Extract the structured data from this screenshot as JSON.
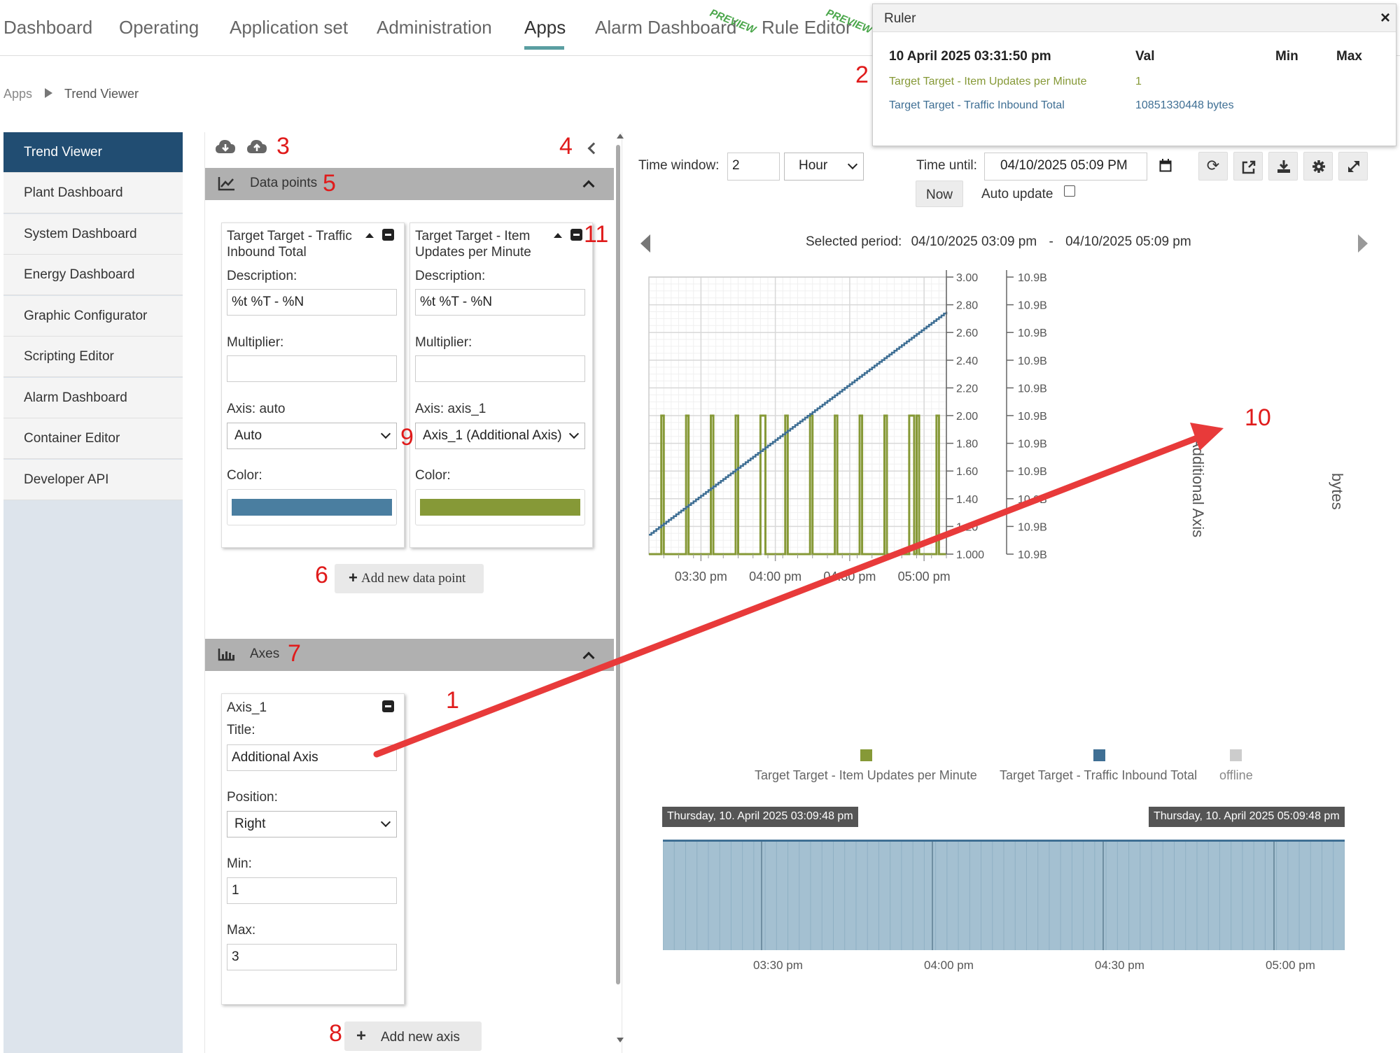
{
  "nav": {
    "items": [
      "Dashboard",
      "Operating",
      "Application set",
      "Administration",
      "Apps",
      "Alarm Dashboard",
      "Rule Editor"
    ],
    "active": "Apps",
    "preview_badge": "PREVIEW"
  },
  "breadcrumb": {
    "root": "Apps",
    "current": "Trend Viewer"
  },
  "sidebar": {
    "items": [
      {
        "label": "Trend Viewer"
      },
      {
        "label": "Plant Dashboard"
      },
      {
        "label": "System Dashboard"
      },
      {
        "label": "Energy Dashboard"
      },
      {
        "label": "Graphic Configurator"
      },
      {
        "label": "Scripting Editor"
      },
      {
        "label": "Alarm Dashboard"
      },
      {
        "label": "Container Editor"
      },
      {
        "label": "Developer API"
      }
    ],
    "active": "Trend Viewer"
  },
  "panel": {
    "data_points_title": "Data points",
    "axes_title": "Axes",
    "data_points": [
      {
        "title_line1": "Target Target - Traffic",
        "title_line2": "Inbound Total",
        "description_label": "Description:",
        "description": "%t %T - %N",
        "multiplier_label": "Multiplier:",
        "multiplier": "",
        "axis_label": "Axis: auto",
        "axis_value": "Auto",
        "color_label": "Color:",
        "color": "#4a7ea0"
      },
      {
        "title_line1": "Target Target - Item",
        "title_line2": "Updates per Minute",
        "description_label": "Description:",
        "description": "%t %T - %N",
        "multiplier_label": "Multiplier:",
        "multiplier": "",
        "axis_label": "Axis: axis_1",
        "axis_value": "Axis_1 (Additional Axis)",
        "color_label": "Color:",
        "color": "#869937"
      }
    ],
    "add_data_point": "Add new data point",
    "axis": {
      "name": "Axis_1",
      "title_label": "Title:",
      "title": "Additional Axis",
      "position_label": "Position:",
      "position": "Right",
      "min_label": "Min:",
      "min": "1",
      "max_label": "Max:",
      "max": "3"
    },
    "add_axis": "Add new axis"
  },
  "toolbar": {
    "time_window_label": "Time window:",
    "time_window_value": "2",
    "time_unit": "Hour",
    "time_until_label": "Time until:",
    "time_until_value": "04/10/2025 05:09 PM",
    "now_label": "Now",
    "auto_update_label": "Auto update",
    "icons": [
      "refresh-icon",
      "external-link-icon",
      "download-icon",
      "gear-icon",
      "expand-icon"
    ]
  },
  "selected_period": {
    "label": "Selected period:",
    "from": "04/10/2025 03:09 pm",
    "sep": "-",
    "to": "04/10/2025 05:09 pm"
  },
  "ruler": {
    "title": "Ruler",
    "close": "×",
    "timestamp": "10 April 2025 03:31:50 pm",
    "col_val": "Val",
    "col_min": "Min",
    "col_max": "Max",
    "rows": [
      {
        "name": "Target Target - Item Updates per Minute",
        "val": "1",
        "color": "#869937"
      },
      {
        "name": "Target Target - Traffic Inbound Total",
        "val": "10851330448 bytes",
        "color": "#3f6f94"
      }
    ]
  },
  "chart_data": {
    "type": "line",
    "x_ticks": [
      "03:30 pm",
      "04:00 pm",
      "04:30 pm",
      "05:00 pm"
    ],
    "x_range": [
      "03:09 pm",
      "05:09 pm"
    ],
    "axes": [
      {
        "title": "Additional Axis",
        "position": "right",
        "ticks": [
          "3.00",
          "2.80",
          "2.60",
          "2.40",
          "2.20",
          "2.00",
          "1.80",
          "1.60",
          "1.40",
          "1.20",
          "1.000"
        ],
        "range": [
          1,
          3
        ]
      },
      {
        "title": "bytes",
        "position": "right",
        "ticks": [
          "10.9B",
          "10.9B",
          "10.9B",
          "10.9B",
          "10.9B",
          "10.9B",
          "10.9B",
          "10.9B",
          "10.9B",
          "10.9B",
          "10.9B"
        ]
      }
    ],
    "series": [
      {
        "name": "Target Target - Item Updates per Minute",
        "color": "#869937",
        "axis": "Additional Axis",
        "pulses": [
          {
            "start": "03:14 pm",
            "end": "03:15 pm"
          },
          {
            "start": "03:24 pm",
            "end": "03:25 pm"
          },
          {
            "start": "03:34 pm",
            "end": "03:35 pm"
          },
          {
            "start": "03:44 pm",
            "end": "03:45 pm"
          },
          {
            "start": "03:54 pm",
            "end": "03:56 pm"
          },
          {
            "start": "04:04 pm",
            "end": "04:05 pm"
          },
          {
            "start": "04:14 pm",
            "end": "04:15 pm"
          },
          {
            "start": "04:24 pm",
            "end": "04:25 pm"
          },
          {
            "start": "04:34 pm",
            "end": "04:35 pm"
          },
          {
            "start": "04:44 pm",
            "end": "04:45 pm"
          },
          {
            "start": "04:54 pm",
            "end": "04:56 pm"
          },
          {
            "start": "04:57 pm",
            "end": "04:58 pm"
          },
          {
            "start": "05:05 pm",
            "end": "05:06 pm"
          }
        ],
        "low": 1,
        "high": 2
      },
      {
        "name": "Target Target - Traffic Inbound Total",
        "color": "#3f6f94",
        "axis": "bytes",
        "trend": "steadily increasing staircase",
        "x": [
          "03:09 pm",
          "05:09 pm"
        ],
        "y_on_axis_1_scale": [
          1.14,
          2.75
        ]
      }
    ],
    "legend": [
      {
        "label": "Target Target - Item Updates per Minute",
        "color": "#869937"
      },
      {
        "label": "Target Target - Traffic Inbound Total",
        "color": "#3f6f94"
      },
      {
        "label": "offline",
        "color": "#cccccc"
      }
    ],
    "legend_position": "bottom",
    "grid": true
  },
  "navigator": {
    "start_label": "Thursday, 10. April 2025 03:09:48 pm",
    "end_label": "Thursday, 10. April 2025 05:09:48 pm",
    "ticks": [
      "03:30 pm",
      "04:00 pm",
      "04:30 pm",
      "05:00 pm"
    ]
  },
  "annotations": [
    "1",
    "2",
    "3",
    "4",
    "5",
    "6",
    "7",
    "8",
    "9",
    "10",
    "11"
  ]
}
